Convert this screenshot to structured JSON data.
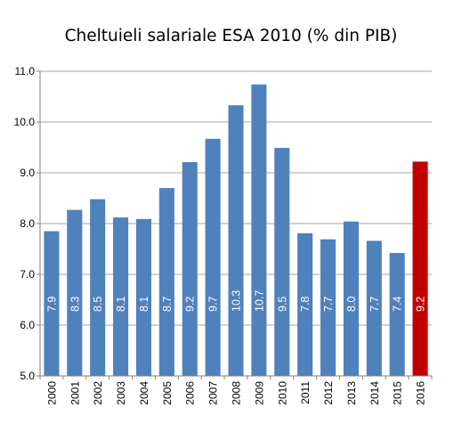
{
  "chart_data": {
    "type": "bar",
    "title": "Cheltuieli salariale ESA 2010 (% din PIB)",
    "xlabel": "",
    "ylabel": "",
    "categories": [
      "2000",
      "2001",
      "2002",
      "2003",
      "2004",
      "2005",
      "2006",
      "2007",
      "2008",
      "2009",
      "2010",
      "2011",
      "2012",
      "2013",
      "2014",
      "2015",
      "2016"
    ],
    "values": [
      7.85,
      8.27,
      8.48,
      8.12,
      8.09,
      8.7,
      9.21,
      9.67,
      10.33,
      10.74,
      9.49,
      7.81,
      7.69,
      8.04,
      7.66,
      7.42,
      9.22
    ],
    "data_labels": [
      "7.9",
      "8.3",
      "8.5",
      "8.1",
      "8.1",
      "8.7",
      "9.2",
      "9.7",
      "10.3",
      "10.7",
      "9.5",
      "7.8",
      "7.7",
      "8.0",
      "7.7",
      "7.4",
      "9.2"
    ],
    "ylim": [
      5.0,
      11.0
    ],
    "yticks": [
      "5.0",
      "6.0",
      "7.0",
      "8.0",
      "9.0",
      "10.0",
      "11.0"
    ],
    "grid": true,
    "legend": "none",
    "colors": {
      "bar": "#4f81bd",
      "bar_highlight": "#c00000",
      "grid": "#a6a6a6",
      "axis": "#7f7f7f"
    },
    "highlight_category": "2016"
  }
}
